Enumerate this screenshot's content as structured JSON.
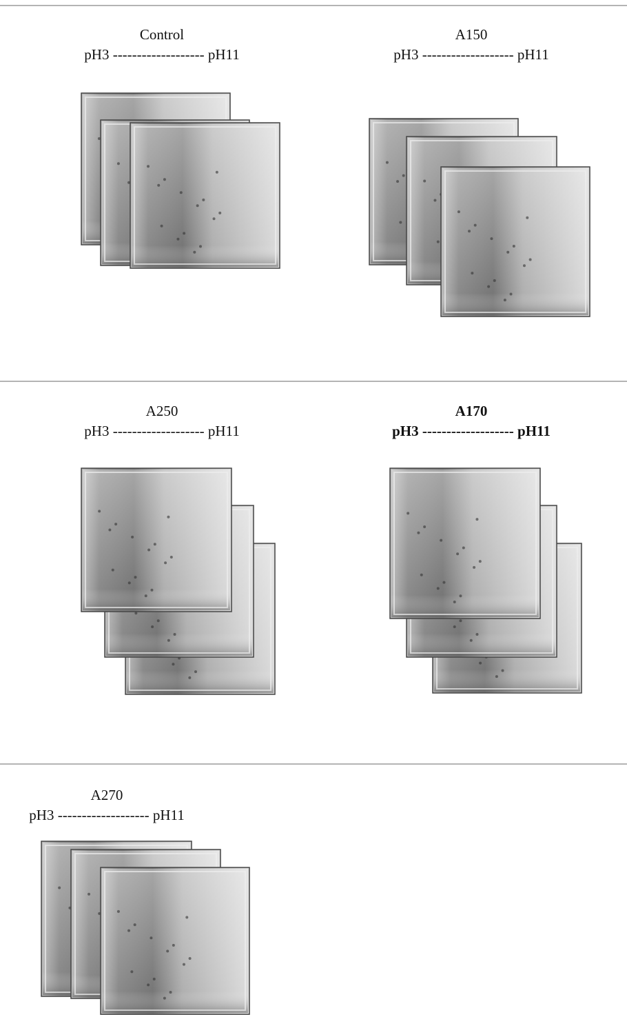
{
  "panels": [
    {
      "title": "Control",
      "range": "pH3 ------------------- pH11"
    },
    {
      "title": "A150",
      "range": "pH3 ------------------- pH11"
    },
    {
      "title": "A250",
      "range": "pH3 ------------------- pH11"
    },
    {
      "title": "A170",
      "range": "pH3 ------------------- pH11"
    },
    {
      "title": "A270",
      "range": "pH3 ------------------- pH11"
    }
  ]
}
